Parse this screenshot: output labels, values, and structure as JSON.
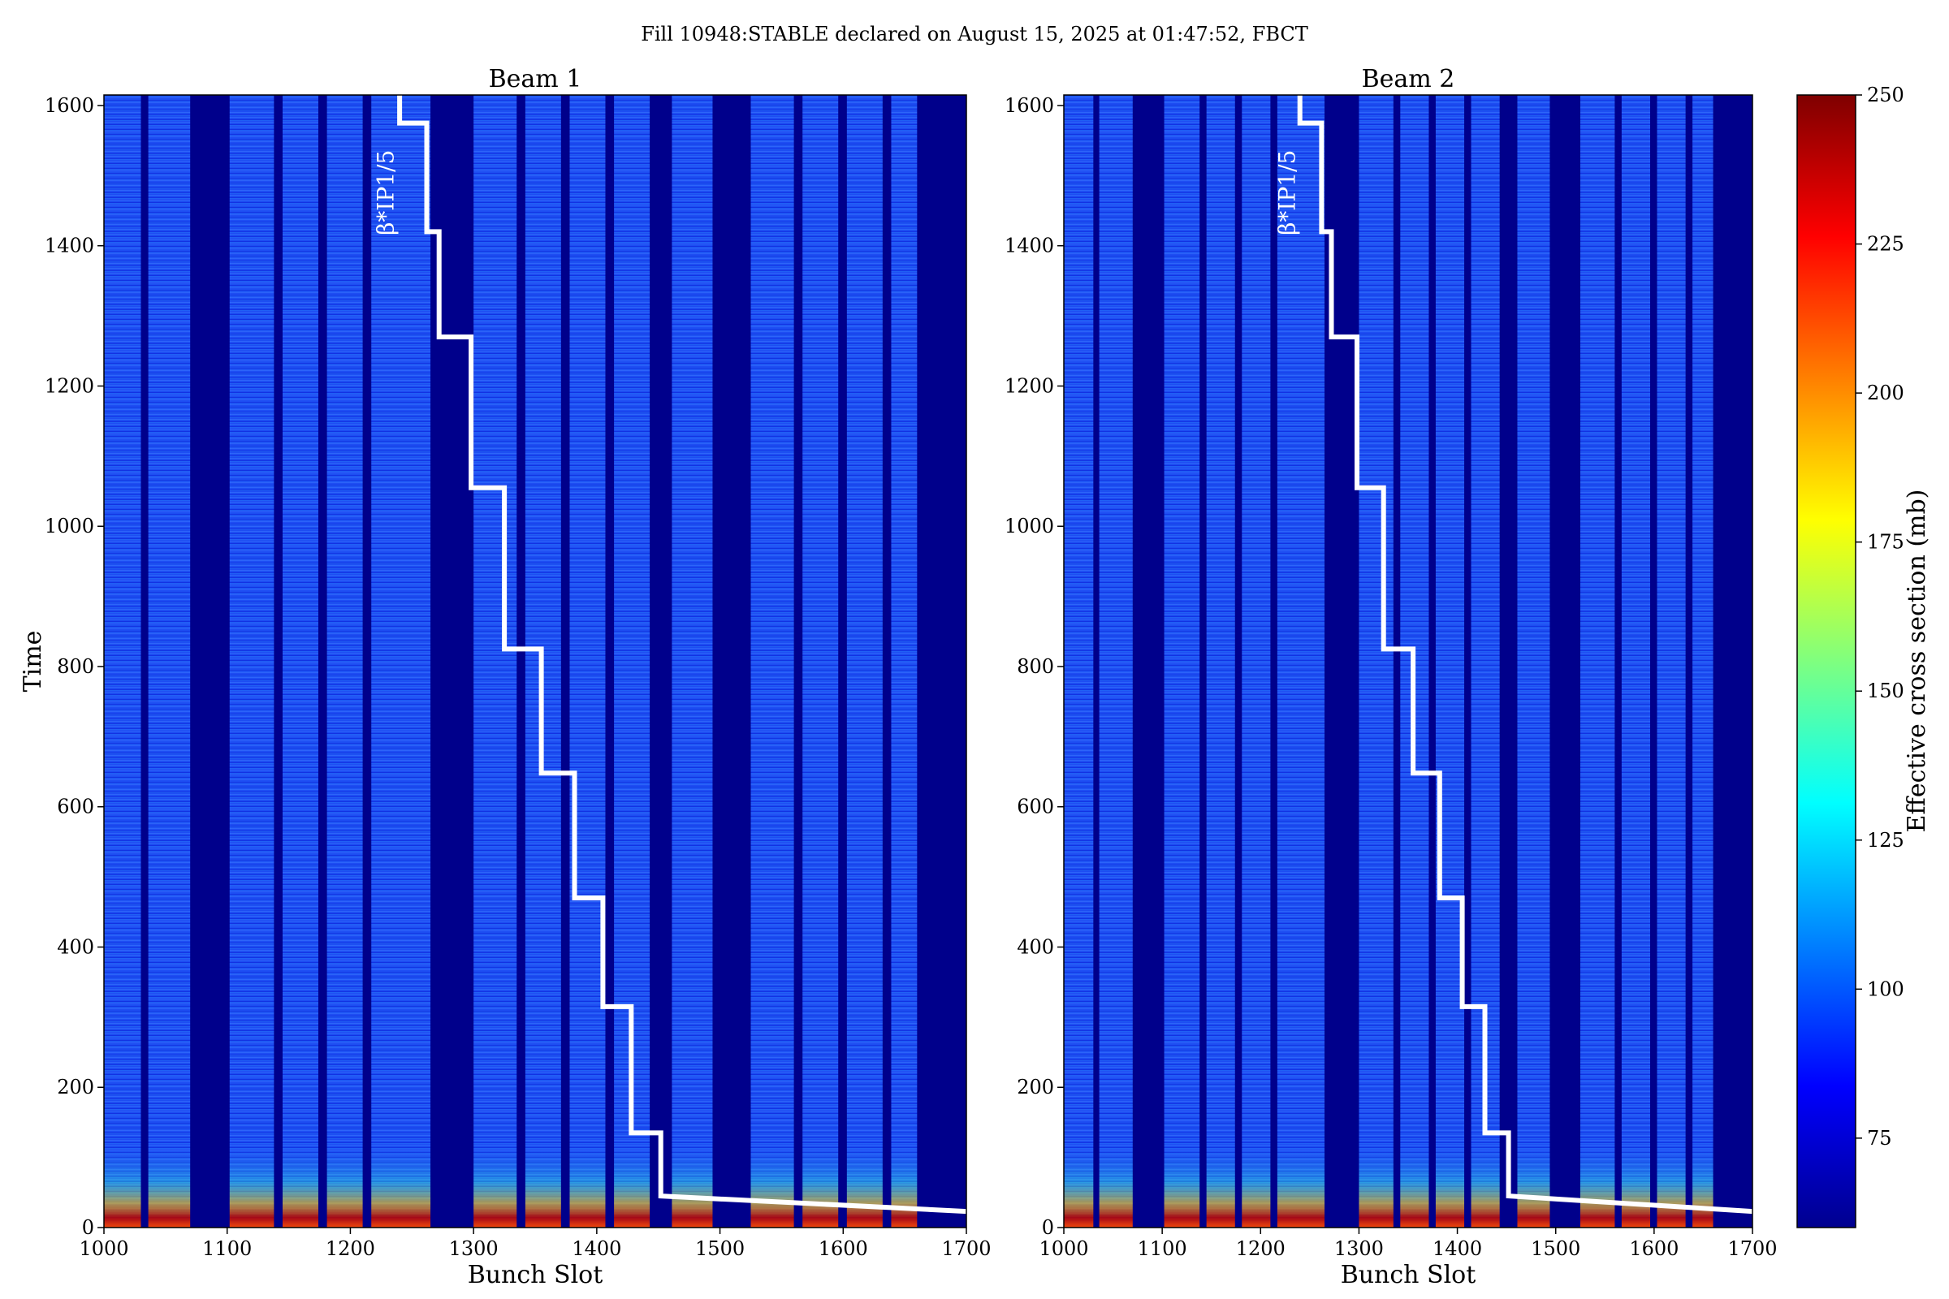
{
  "suptitle": "Fill 10948:STABLE declared on August 15, 2025 at 01:47:52, FBCT",
  "colorbar": {
    "label": "Effective cross section (mb)",
    "min": 60,
    "max": 250,
    "ticks": [
      75,
      100,
      125,
      150,
      175,
      200,
      225,
      250
    ],
    "colormap": "jet"
  },
  "chart_data": [
    {
      "type": "heatmap",
      "title": "Beam 1",
      "xlabel": "Bunch Slot",
      "ylabel": "Time",
      "xlim": [
        1000,
        1700
      ],
      "ylim": [
        0,
        1615
      ],
      "xticks": [
        1000,
        1100,
        1200,
        1300,
        1400,
        1500,
        1600,
        1700
      ],
      "yticks": [
        0,
        200,
        400,
        600,
        800,
        1000,
        1200,
        1400,
        1600
      ],
      "empty_bands": [
        [
          1030,
          1036
        ],
        [
          1070,
          1102
        ],
        [
          1138,
          1145
        ],
        [
          1174,
          1181
        ],
        [
          1210,
          1217
        ],
        [
          1265,
          1300
        ],
        [
          1335,
          1342
        ],
        [
          1371,
          1378
        ],
        [
          1407,
          1414
        ],
        [
          1443,
          1461
        ],
        [
          1494,
          1525
        ],
        [
          1560,
          1567
        ],
        [
          1596,
          1603
        ],
        [
          1632,
          1639
        ],
        [
          1660,
          1700
        ]
      ],
      "high_value_region": {
        "time_range": [
          0,
          120
        ],
        "peak_value_mb": 250
      },
      "bulk_value_mb": 95,
      "annotation": {
        "label": "β*IP1/5",
        "steps": [
          [
            1240,
            1615
          ],
          [
            1240,
            1575
          ],
          [
            1262,
            1575
          ],
          [
            1262,
            1420
          ],
          [
            1272,
            1420
          ],
          [
            1272,
            1270
          ],
          [
            1298,
            1270
          ],
          [
            1298,
            1055
          ],
          [
            1325,
            1055
          ],
          [
            1325,
            825
          ],
          [
            1355,
            825
          ],
          [
            1355,
            648
          ],
          [
            1382,
            648
          ],
          [
            1382,
            470
          ],
          [
            1405,
            470
          ],
          [
            1405,
            315
          ],
          [
            1428,
            315
          ],
          [
            1428,
            135
          ],
          [
            1452,
            135
          ],
          [
            1452,
            45
          ],
          [
            1700,
            23
          ]
        ]
      }
    },
    {
      "type": "heatmap",
      "title": "Beam 2",
      "xlabel": "Bunch Slot",
      "ylabel": "",
      "xlim": [
        1000,
        1700
      ],
      "ylim": [
        0,
        1615
      ],
      "xticks": [
        1000,
        1100,
        1200,
        1300,
        1400,
        1500,
        1600,
        1700
      ],
      "yticks": [
        0,
        200,
        400,
        600,
        800,
        1000,
        1200,
        1400,
        1600
      ],
      "empty_bands": [
        [
          1030,
          1036
        ],
        [
          1070,
          1102
        ],
        [
          1138,
          1145
        ],
        [
          1174,
          1181
        ],
        [
          1210,
          1217
        ],
        [
          1265,
          1300
        ],
        [
          1335,
          1342
        ],
        [
          1371,
          1378
        ],
        [
          1407,
          1414
        ],
        [
          1443,
          1461
        ],
        [
          1494,
          1525
        ],
        [
          1560,
          1567
        ],
        [
          1596,
          1603
        ],
        [
          1632,
          1639
        ],
        [
          1660,
          1700
        ]
      ],
      "high_value_region": {
        "time_range": [
          0,
          120
        ],
        "peak_value_mb": 240
      },
      "bulk_value_mb": 95,
      "annotation": {
        "label": "β*IP1/5",
        "steps": [
          [
            1240,
            1615
          ],
          [
            1240,
            1575
          ],
          [
            1262,
            1575
          ],
          [
            1262,
            1420
          ],
          [
            1272,
            1420
          ],
          [
            1272,
            1270
          ],
          [
            1298,
            1270
          ],
          [
            1298,
            1055
          ],
          [
            1325,
            1055
          ],
          [
            1325,
            825
          ],
          [
            1355,
            825
          ],
          [
            1355,
            648
          ],
          [
            1382,
            648
          ],
          [
            1382,
            470
          ],
          [
            1405,
            470
          ],
          [
            1405,
            315
          ],
          [
            1428,
            315
          ],
          [
            1428,
            135
          ],
          [
            1452,
            135
          ],
          [
            1452,
            45
          ],
          [
            1700,
            23
          ]
        ]
      }
    }
  ]
}
